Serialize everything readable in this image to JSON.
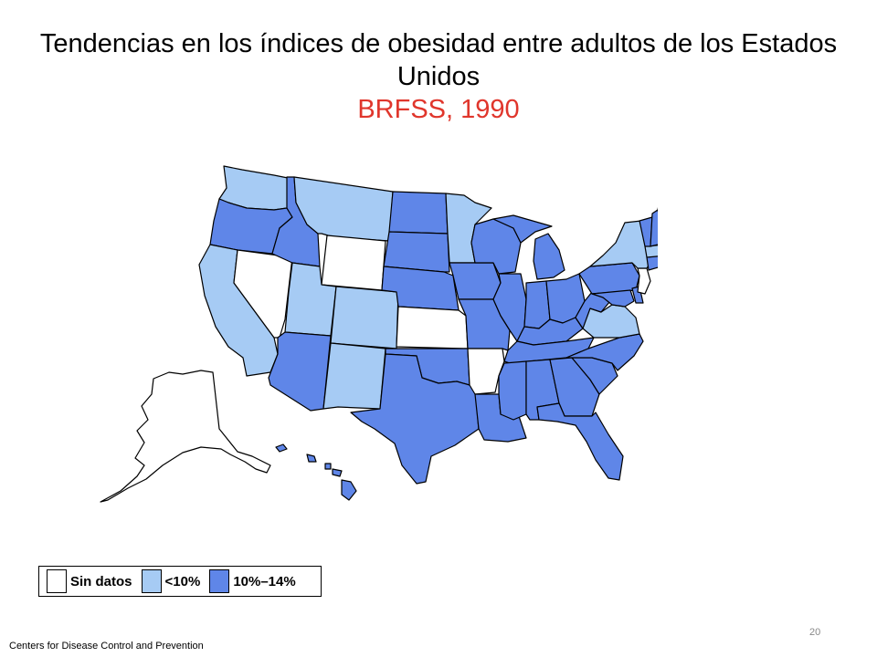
{
  "header": {
    "title": "Tendencias en los índices de obesidad entre adultos de los Estados Unidos",
    "subtitle": "BRFSS, 1990"
  },
  "legend": {
    "items": [
      {
        "label": "Sin datos",
        "color": "#ffffff"
      },
      {
        "label": "<10%",
        "color": "#a6cbf4"
      },
      {
        "label": "10%–14%",
        "color": "#5f86e8"
      }
    ]
  },
  "colors": {
    "no_data": "#ffffff",
    "lt10": "#a6cbf4",
    "r10_14": "#5f86e8"
  },
  "map": {
    "categories": {
      "no_data": [
        "Wyoming",
        "Nevada",
        "Kansas",
        "Arkansas",
        "New Jersey",
        "Alaska"
      ],
      "lt10": [
        "Washington",
        "Montana",
        "Minnesota",
        "California",
        "Utah",
        "Colorado",
        "New Mexico",
        "New York",
        "Virginia",
        "Massachusetts"
      ],
      "r10_14": [
        "Oregon",
        "Idaho",
        "North Dakota",
        "South Dakota",
        "Nebraska",
        "Iowa",
        "Wisconsin",
        "Michigan",
        "Illinois",
        "Indiana",
        "Ohio",
        "Pennsylvania",
        "Maine",
        "Vermont",
        "New Hampshire",
        "Connecticut",
        "Rhode Island",
        "Maryland",
        "Delaware",
        "West Virginia",
        "Kentucky",
        "Tennessee",
        "North Carolina",
        "South Carolina",
        "Georgia",
        "Alabama",
        "Mississippi",
        "Louisiana",
        "Texas",
        "Oklahoma",
        "Missouri",
        "Arizona",
        "Florida",
        "Hawaii"
      ]
    }
  },
  "footer": {
    "source": "Centers  for Disease Control and Prevention",
    "page": "20"
  }
}
